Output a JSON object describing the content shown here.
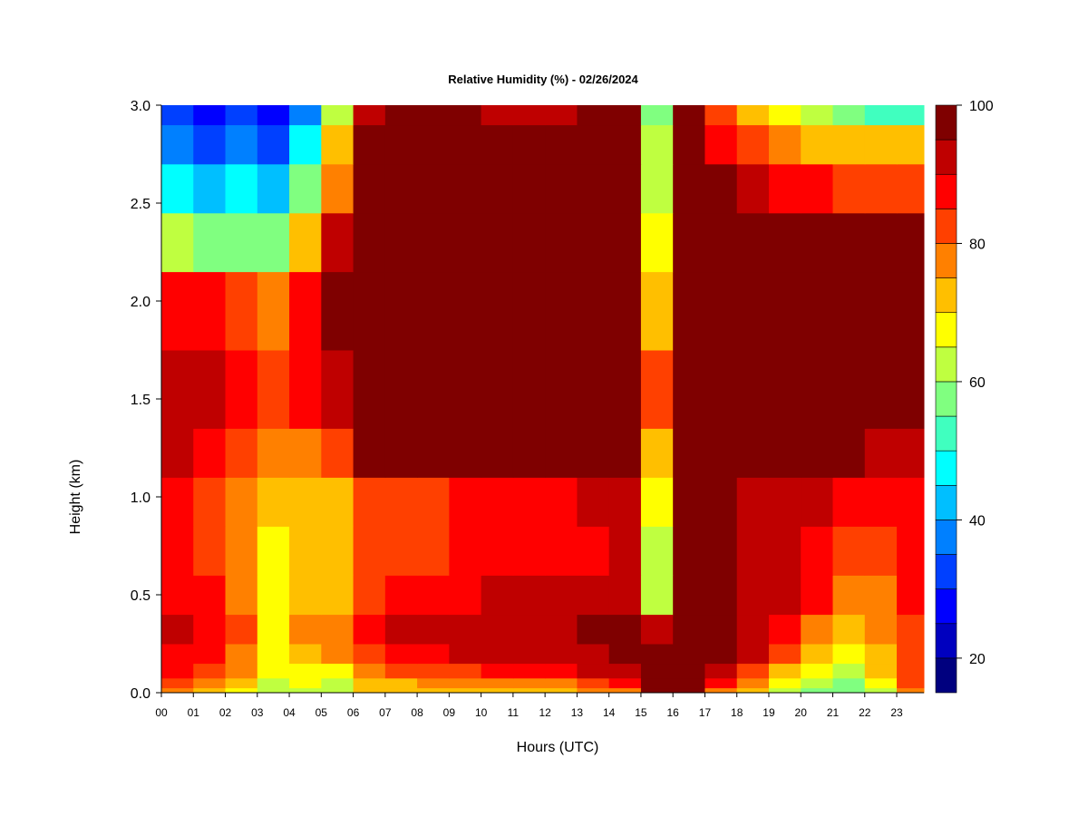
{
  "chart_data": {
    "type": "heatmap",
    "title": "Relative Humidity (%) - 02/26/2024",
    "xlabel": "Hours (UTC)",
    "ylabel": "Height (km)",
    "x_ticks": [
      "00",
      "01",
      "02",
      "03",
      "04",
      "05",
      "06",
      "07",
      "08",
      "09",
      "10",
      "11",
      "12",
      "13",
      "14",
      "15",
      "16",
      "17",
      "18",
      "19",
      "20",
      "21",
      "22",
      "23"
    ],
    "xlim": [
      0,
      23.85
    ],
    "y_ticks": [
      "0.0",
      "0.5",
      "1.0",
      "1.5",
      "2.0",
      "2.5",
      "3.0"
    ],
    "ylim": [
      0,
      3.0
    ],
    "colorbar": {
      "ticks": [
        "20",
        "40",
        "60",
        "80",
        "100"
      ],
      "range": [
        15,
        100
      ],
      "levels": [
        15,
        20,
        25,
        30,
        35,
        40,
        45,
        50,
        55,
        60,
        65,
        70,
        75,
        80,
        85,
        90,
        95,
        100
      ],
      "colors": [
        "#00007f",
        "#0000bf",
        "#0000ff",
        "#0040ff",
        "#0080ff",
        "#00bfff",
        "#00ffff",
        "#40ffbf",
        "#80ff80",
        "#bfff40",
        "#ffff00",
        "#ffbf00",
        "#ff8000",
        "#ff4000",
        "#ff0000",
        "#bf0000",
        "#7f0000"
      ]
    },
    "height_levels_km": [
      0.0,
      0.05,
      0.1,
      0.2,
      0.3,
      0.5,
      0.7,
      1.0,
      1.2,
      1.5,
      2.0,
      2.3,
      2.6,
      2.8,
      3.0
    ],
    "hours": [
      0,
      1,
      2,
      3,
      4,
      5,
      6,
      7,
      8,
      9,
      10,
      11,
      12,
      13,
      14,
      15,
      16,
      17,
      18,
      19,
      20,
      21,
      22,
      23
    ],
    "z_rh_percent": [
      [
        75,
        70,
        65,
        60,
        62,
        60,
        70,
        70,
        72,
        73,
        74,
        72,
        73,
        75,
        78,
        95,
        98,
        78,
        70,
        62,
        58,
        55,
        62,
        75
      ],
      [
        80,
        75,
        70,
        62,
        65,
        63,
        72,
        73,
        75,
        76,
        77,
        77,
        78,
        80,
        85,
        96,
        98,
        85,
        75,
        65,
        60,
        58,
        68,
        80
      ],
      [
        85,
        80,
        75,
        65,
        68,
        68,
        78,
        80,
        82,
        83,
        85,
        85,
        87,
        90,
        93,
        97,
        98,
        92,
        82,
        72,
        65,
        62,
        72,
        82
      ],
      [
        88,
        85,
        78,
        67,
        72,
        75,
        83,
        88,
        88,
        90,
        92,
        92,
        93,
        94,
        95,
        97,
        98,
        96,
        90,
        82,
        72,
        66,
        74,
        83
      ],
      [
        90,
        87,
        80,
        68,
        75,
        78,
        85,
        90,
        90,
        92,
        93,
        93,
        94,
        95,
        95,
        93,
        98,
        97,
        93,
        88,
        78,
        70,
        75,
        84
      ],
      [
        87,
        85,
        78,
        66,
        72,
        73,
        82,
        86,
        86,
        88,
        90,
        90,
        91,
        92,
        93,
        60,
        98,
        96,
        93,
        90,
        85,
        75,
        78,
        85
      ],
      [
        85,
        82,
        75,
        65,
        70,
        70,
        80,
        84,
        84,
        86,
        88,
        88,
        88,
        89,
        90,
        60,
        98,
        96,
        93,
        92,
        88,
        80,
        82,
        86
      ],
      [
        88,
        84,
        78,
        70,
        72,
        72,
        80,
        84,
        84,
        86,
        88,
        88,
        88,
        90,
        92,
        65,
        98,
        95,
        92,
        92,
        90,
        88,
        88,
        88
      ],
      [
        90,
        88,
        82,
        75,
        78,
        82,
        95,
        97,
        97,
        97,
        97,
        97,
        97,
        97,
        97,
        70,
        98,
        98,
        97,
        96,
        96,
        95,
        94,
        93
      ],
      [
        92,
        90,
        85,
        80,
        85,
        92,
        98,
        98,
        98,
        98,
        98,
        98,
        98,
        98,
        98,
        80,
        98,
        98,
        98,
        98,
        98,
        98,
        98,
        98
      ],
      [
        88,
        85,
        82,
        78,
        85,
        95,
        98,
        98,
        98,
        98,
        98,
        98,
        98,
        98,
        98,
        70,
        98,
        98,
        98,
        98,
        98,
        98,
        98,
        98
      ],
      [
        60,
        55,
        58,
        55,
        72,
        90,
        98,
        98,
        98,
        98,
        98,
        98,
        98,
        98,
        98,
        65,
        98,
        98,
        98,
        98,
        98,
        97,
        96,
        95
      ],
      [
        45,
        40,
        45,
        40,
        55,
        78,
        98,
        98,
        98,
        98,
        98,
        98,
        98,
        98,
        98,
        60,
        98,
        95,
        92,
        88,
        86,
        84,
        82,
        82
      ],
      [
        38,
        32,
        38,
        30,
        45,
        70,
        96,
        98,
        98,
        98,
        98,
        98,
        98,
        98,
        98,
        60,
        98,
        88,
        82,
        76,
        74,
        70,
        70,
        72
      ],
      [
        32,
        26,
        30,
        25,
        38,
        60,
        93,
        95,
        96,
        96,
        94,
        92,
        94,
        96,
        98,
        55,
        98,
        82,
        74,
        66,
        60,
        55,
        50,
        52
      ]
    ],
    "annotations": "narrow vertical bands of low humidity (≈45–65%) near 15 UTC above ~0.4 km"
  }
}
